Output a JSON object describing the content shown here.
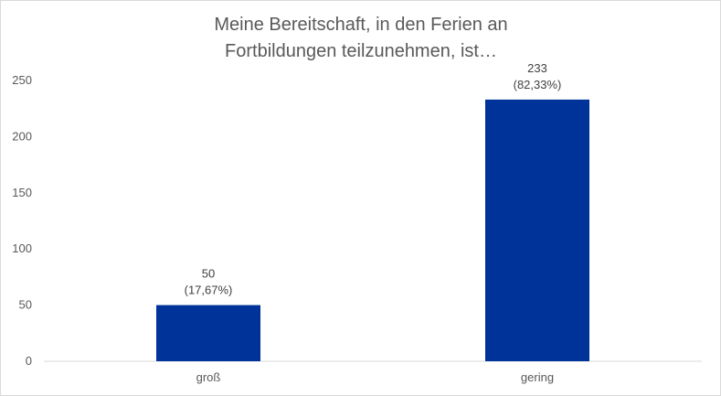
{
  "chart_data": {
    "type": "bar",
    "title_lines": [
      "Meine Bereitschaft, in den Ferien an",
      "Fortbildungen teilzunehmen, ist…"
    ],
    "xlabel": "",
    "ylabel": "",
    "categories": [
      "groß",
      "gering"
    ],
    "values": [
      50,
      233
    ],
    "data_labels": [
      [
        "50",
        "(17,67%)"
      ],
      [
        "233",
        "(82,33%)"
      ]
    ],
    "ylim": [
      0,
      250
    ],
    "y_ticks": [
      "0",
      "50",
      "100",
      "150",
      "200",
      "250"
    ],
    "y_tick_values": [
      0,
      50,
      100,
      150,
      200,
      250
    ],
    "grid": false,
    "legend": "none",
    "bar_color": "#003399"
  }
}
